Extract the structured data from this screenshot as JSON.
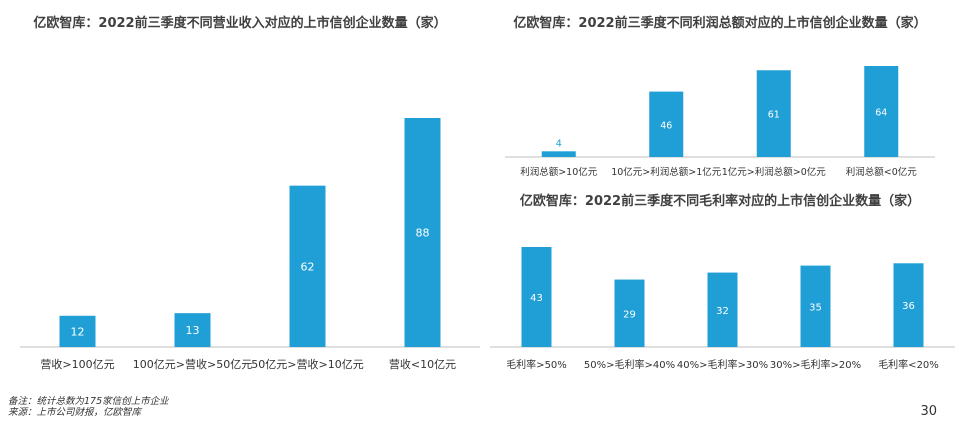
{
  "chart_data": [
    {
      "id": "chart1",
      "type": "bar",
      "title": "亿欧智库：2022前三季度不同营业收入对应的上市信创企业数量（家）",
      "categories": [
        "营收>100亿元",
        "100亿元>营收>50亿元",
        "50亿元>营收>10亿元",
        "营收<10亿元"
      ],
      "values": [
        12,
        13,
        62,
        88
      ],
      "color": "#1f9fd5",
      "grid": false,
      "legend": "none"
    },
    {
      "id": "chart2",
      "type": "bar",
      "title": "亿欧智库：2022前三季度不同利润总额对应的上市信创企业数量（家）",
      "categories": [
        "利润总额>10亿元",
        "10亿元>利润总额>1亿元",
        "1亿元>利润总额>0亿元",
        "利润总额<0亿元"
      ],
      "values": [
        4,
        46,
        61,
        64
      ],
      "color": "#1f9fd5",
      "grid": false,
      "legend": "none"
    },
    {
      "id": "chart3",
      "type": "bar",
      "title": "亿欧智库：2022前三季度不同毛利率对应的上市信创企业数量（家）",
      "categories": [
        "毛利率>50%",
        "50%>毛利率>40%",
        "40%>毛利率>30%",
        "30%>毛利率>20%",
        "毛利率<20%"
      ],
      "values": [
        43,
        29,
        32,
        35,
        36
      ],
      "color": "#1f9fd5",
      "grid": false,
      "legend": "none"
    }
  ],
  "footer": {
    "note": "备注：统计总数为175家信创上市企业",
    "source": "来源：上市公司财报，亿欧智库",
    "page_number": "30"
  }
}
